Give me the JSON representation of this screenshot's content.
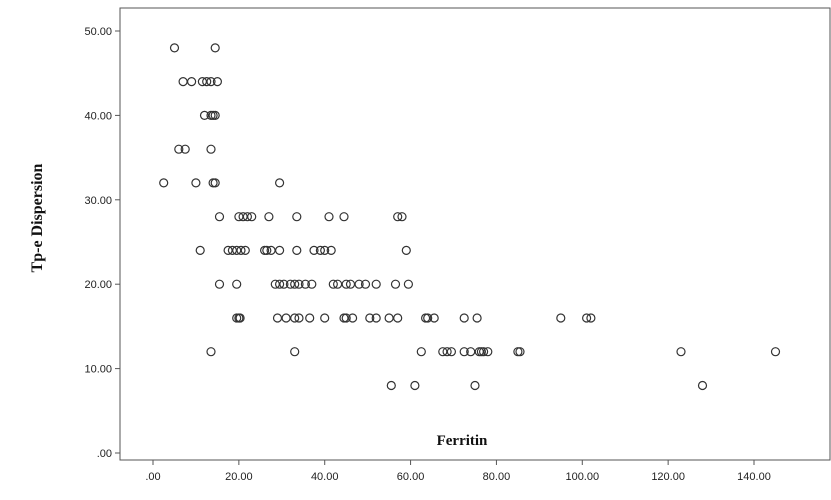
{
  "chart_data": {
    "type": "scatter",
    "xlabel": "Ferritin",
    "ylabel": "Tp-e Dispersion",
    "xlim": [
      -5,
      160
    ],
    "ylim": [
      -5,
      54
    ],
    "xticks": [
      ".00",
      "20.00",
      "40.00",
      "60.00",
      "80.00",
      "100.00",
      "120.00",
      "140.00"
    ],
    "yticks": [
      ".00",
      "10.00",
      "20.00",
      "30.00",
      "40.00",
      "50.00"
    ],
    "grid": false,
    "points": [
      [
        5,
        48
      ],
      [
        14.5,
        48
      ],
      [
        7,
        44
      ],
      [
        9,
        44
      ],
      [
        11.5,
        44
      ],
      [
        12.5,
        44
      ],
      [
        13.5,
        44
      ],
      [
        15,
        44
      ],
      [
        12,
        40
      ],
      [
        13.5,
        40
      ],
      [
        14,
        40
      ],
      [
        14.5,
        40
      ],
      [
        6,
        36
      ],
      [
        7.5,
        36
      ],
      [
        13.5,
        36
      ],
      [
        2.5,
        32
      ],
      [
        10,
        32
      ],
      [
        14,
        32
      ],
      [
        14.5,
        32
      ],
      [
        29.5,
        32
      ],
      [
        15.5,
        28
      ],
      [
        20,
        28
      ],
      [
        21,
        28
      ],
      [
        22,
        28
      ],
      [
        23,
        28
      ],
      [
        27,
        28
      ],
      [
        33.5,
        28
      ],
      [
        41,
        28
      ],
      [
        44.5,
        28
      ],
      [
        57,
        28
      ],
      [
        58,
        28
      ],
      [
        11,
        24
      ],
      [
        17.5,
        24
      ],
      [
        18.5,
        24
      ],
      [
        19.5,
        24
      ],
      [
        20.5,
        24
      ],
      [
        21.5,
        24
      ],
      [
        26,
        24
      ],
      [
        26.5,
        24
      ],
      [
        27.5,
        24
      ],
      [
        29.5,
        24
      ],
      [
        33.5,
        24
      ],
      [
        37.5,
        24
      ],
      [
        39,
        24
      ],
      [
        40,
        24
      ],
      [
        41.5,
        24
      ],
      [
        59,
        24
      ],
      [
        15.5,
        20
      ],
      [
        19.5,
        20
      ],
      [
        28.5,
        20
      ],
      [
        29.5,
        20
      ],
      [
        30.5,
        20
      ],
      [
        32,
        20
      ],
      [
        33,
        20
      ],
      [
        34,
        20
      ],
      [
        35.5,
        20
      ],
      [
        37,
        20
      ],
      [
        42,
        20
      ],
      [
        43,
        20
      ],
      [
        45,
        20
      ],
      [
        46,
        20
      ],
      [
        48,
        20
      ],
      [
        49.5,
        20
      ],
      [
        52,
        20
      ],
      [
        56.5,
        20
      ],
      [
        59.5,
        20
      ],
      [
        19.5,
        16
      ],
      [
        20,
        16
      ],
      [
        20.3,
        16
      ],
      [
        29,
        16
      ],
      [
        31,
        16
      ],
      [
        33,
        16
      ],
      [
        34,
        16
      ],
      [
        36.5,
        16
      ],
      [
        40,
        16
      ],
      [
        44.5,
        16
      ],
      [
        45,
        16
      ],
      [
        46.5,
        16
      ],
      [
        50.5,
        16
      ],
      [
        52,
        16
      ],
      [
        55,
        16
      ],
      [
        57,
        16
      ],
      [
        63.5,
        16
      ],
      [
        64,
        16
      ],
      [
        65.5,
        16
      ],
      [
        72.5,
        16
      ],
      [
        75.5,
        16
      ],
      [
        95,
        16
      ],
      [
        101,
        16
      ],
      [
        102,
        16
      ],
      [
        13.5,
        12
      ],
      [
        33,
        12
      ],
      [
        62.5,
        12
      ],
      [
        67.5,
        12
      ],
      [
        68.5,
        12
      ],
      [
        69.5,
        12
      ],
      [
        72.5,
        12
      ],
      [
        74,
        12
      ],
      [
        76,
        12
      ],
      [
        76.5,
        12
      ],
      [
        77,
        12
      ],
      [
        78,
        12
      ],
      [
        85,
        12
      ],
      [
        85.5,
        12
      ],
      [
        123,
        12
      ],
      [
        145,
        12
      ],
      [
        55.5,
        8
      ],
      [
        61,
        8
      ],
      [
        75,
        8
      ],
      [
        128,
        8
      ]
    ]
  }
}
